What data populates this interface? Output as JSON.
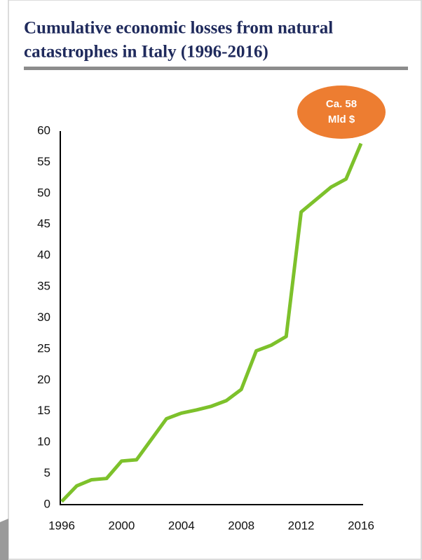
{
  "chart_data": {
    "type": "line",
    "title": [
      "Cumulative economic losses from natural",
      "catastrophes in Italy (1996-2016)"
    ],
    "x": [
      1996,
      1997,
      1998,
      1999,
      2000,
      2001,
      2002,
      2003,
      2004,
      2005,
      2006,
      2007,
      2008,
      2009,
      2010,
      2011,
      2012,
      2013,
      2014,
      2015,
      2016
    ],
    "series": [
      {
        "color": "#7dc12b",
        "values": [
          0.5,
          3,
          4,
          4.2,
          7,
          7.2,
          10.5,
          13.8,
          14.7,
          15.2,
          15.8,
          16.7,
          18.5,
          24.7,
          25.6,
          27,
          47,
          49,
          51,
          52.3,
          58
        ]
      }
    ],
    "xlim": [
      1996,
      2016
    ],
    "xticks": [
      1996,
      2000,
      2004,
      2008,
      2012,
      2016
    ],
    "ylim": [
      0,
      60
    ],
    "yticks": [
      0,
      5,
      10,
      15,
      20,
      25,
      30,
      35,
      40,
      45,
      50,
      55,
      60
    ],
    "grid": false,
    "annotation": [
      "Ca. 58",
      "Mld $"
    ],
    "annotation_color": "#ed7d31"
  }
}
